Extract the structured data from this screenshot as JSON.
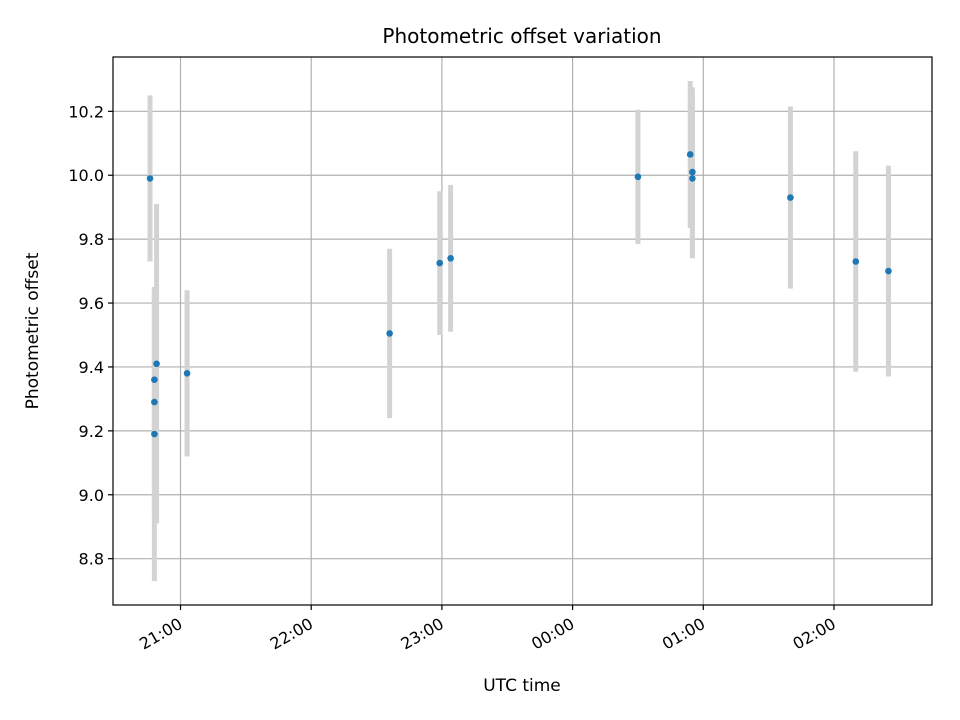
{
  "chart_data": {
    "type": "scatter",
    "title": "Photometric offset variation",
    "xlabel": "UTC time",
    "ylabel": "Photometric offset",
    "x_axis_type": "time",
    "x_ticks": [
      "21:00",
      "22:00",
      "23:00",
      "00:00",
      "01:00",
      "02:00"
    ],
    "x_tick_rotation_deg": 30,
    "xlim": [
      "20:29",
      "02:45"
    ],
    "y_ticks": [
      8.8,
      9.0,
      9.2,
      9.4,
      9.6,
      9.8,
      10.0,
      10.2
    ],
    "ylim": [
      8.655,
      10.37
    ],
    "grid": true,
    "marker_color": "#1f77b4",
    "errorbar_color": "#d3d3d3",
    "points": [
      {
        "x": "20:46",
        "y": 9.99,
        "yerr": 0.26
      },
      {
        "x": "20:48",
        "y": 9.19,
        "yerr": 0.46
      },
      {
        "x": "20:48",
        "y": 9.29,
        "yerr": 0.36
      },
      {
        "x": "20:48",
        "y": 9.36,
        "yerr": 0.29
      },
      {
        "x": "20:49",
        "y": 9.41,
        "yerr": 0.5
      },
      {
        "x": "21:03",
        "y": 9.38,
        "yerr": 0.26
      },
      {
        "x": "22:36",
        "y": 9.505,
        "yerr": 0.265
      },
      {
        "x": "22:59",
        "y": 9.725,
        "yerr": 0.225
      },
      {
        "x": "23:04",
        "y": 9.74,
        "yerr": 0.23
      },
      {
        "x": "00:30",
        "y": 9.995,
        "yerr": 0.21
      },
      {
        "x": "00:54",
        "y": 10.065,
        "yerr": 0.23
      },
      {
        "x": "00:55",
        "y": 10.01,
        "yerr": 0.265
      },
      {
        "x": "00:55",
        "y": 9.99,
        "yerr": 0.25
      },
      {
        "x": "01:40",
        "y": 9.93,
        "yerr": 0.285
      },
      {
        "x": "02:10",
        "y": 9.73,
        "yerr": 0.345
      },
      {
        "x": "02:25",
        "y": 9.7,
        "yerr": 0.33
      }
    ]
  }
}
